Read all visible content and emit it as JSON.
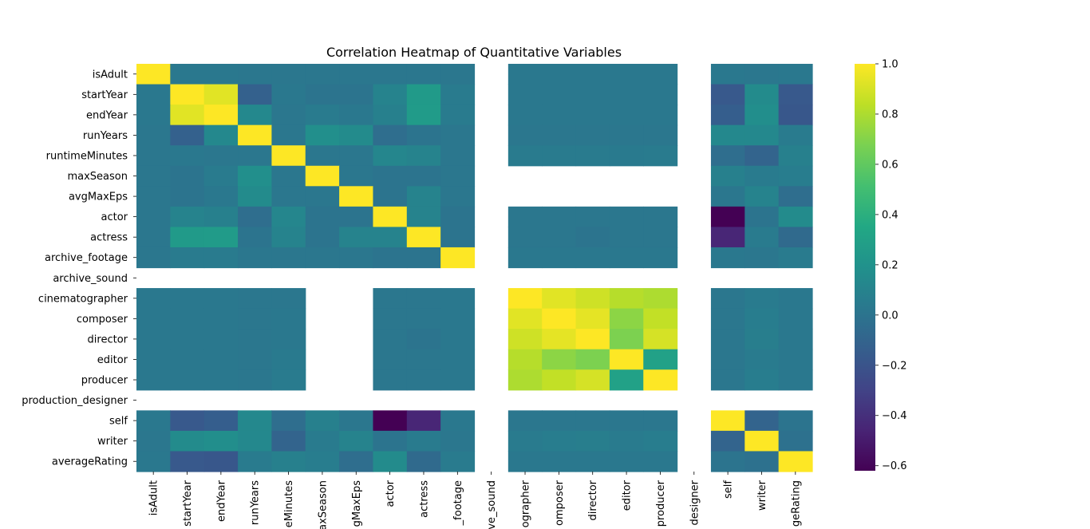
{
  "chart_data": {
    "type": "heatmap",
    "title": "Correlation Heatmap of Quantitative Variables",
    "variables": [
      "isAdult",
      "startYear",
      "endYear",
      "runYears",
      "runtimeMinutes",
      "maxSeason",
      "avgMaxEps",
      "actor",
      "actress",
      "archive_footage",
      "archive_sound",
      "cinematographer",
      "composer",
      "director",
      "editor",
      "producer",
      "production_designer",
      "self",
      "writer",
      "averageRating"
    ],
    "x_tick_labels": [
      "isAdult",
      "startYear",
      "endYear",
      "runYears",
      "eMinutes",
      "axSeason",
      "gMaxEps",
      "actor",
      "actress",
      "_footage",
      "ve_sound",
      "ographer",
      "omposer",
      "director",
      "editor",
      "producer",
      "designer",
      "self",
      "writer",
      "geRating"
    ],
    "matrix": [
      [
        1.0,
        0.03,
        0.03,
        0.02,
        0.02,
        0.02,
        0.02,
        0.02,
        0.02,
        0.02,
        null,
        0.03,
        0.03,
        0.03,
        0.03,
        0.03,
        null,
        0.03,
        0.02,
        0.03
      ],
      [
        0.03,
        1.0,
        0.93,
        -0.12,
        0.03,
        0.0,
        0.0,
        0.1,
        0.25,
        0.05,
        null,
        0.03,
        0.03,
        0.03,
        0.03,
        0.03,
        null,
        -0.17,
        0.15,
        -0.17
      ],
      [
        0.03,
        0.93,
        1.0,
        0.13,
        0.02,
        0.05,
        0.03,
        0.08,
        0.26,
        0.05,
        null,
        0.03,
        0.03,
        0.03,
        0.03,
        0.03,
        null,
        -0.14,
        0.17,
        -0.18
      ],
      [
        0.02,
        -0.12,
        0.13,
        1.0,
        0.02,
        0.18,
        0.15,
        -0.04,
        0.0,
        0.02,
        null,
        0.02,
        0.02,
        0.02,
        0.02,
        0.02,
        null,
        0.13,
        0.13,
        0.05
      ],
      [
        0.02,
        0.03,
        0.02,
        0.02,
        1.0,
        0.02,
        0.02,
        0.12,
        0.1,
        0.02,
        null,
        0.05,
        0.05,
        0.05,
        0.04,
        0.05,
        null,
        -0.04,
        -0.1,
        0.08
      ],
      [
        0.02,
        0.0,
        0.05,
        0.18,
        0.02,
        1.0,
        0.02,
        0.0,
        0.0,
        0.02,
        null,
        null,
        null,
        null,
        null,
        null,
        null,
        0.08,
        0.05,
        0.06
      ],
      [
        0.02,
        0.0,
        0.03,
        0.15,
        0.02,
        0.02,
        1.0,
        0.0,
        0.1,
        0.02,
        null,
        null,
        null,
        null,
        null,
        null,
        null,
        0.02,
        0.1,
        -0.04
      ],
      [
        0.02,
        0.1,
        0.08,
        -0.04,
        0.12,
        0.0,
        0.0,
        1.0,
        0.1,
        0.0,
        null,
        0.02,
        0.02,
        0.02,
        0.02,
        0.02,
        null,
        -0.62,
        0.0,
        0.15
      ],
      [
        0.02,
        0.25,
        0.26,
        0.0,
        0.1,
        0.0,
        0.1,
        0.1,
        1.0,
        0.0,
        null,
        0.02,
        0.02,
        0.0,
        0.02,
        0.02,
        null,
        -0.45,
        0.05,
        -0.06
      ],
      [
        0.02,
        0.05,
        0.05,
        0.02,
        0.02,
        0.02,
        0.02,
        0.0,
        0.0,
        1.0,
        null,
        0.03,
        0.03,
        0.03,
        0.03,
        0.03,
        null,
        0.03,
        0.02,
        0.05
      ],
      [
        null,
        null,
        null,
        null,
        null,
        null,
        null,
        null,
        null,
        null,
        null,
        null,
        null,
        null,
        null,
        null,
        null,
        null,
        null,
        null
      ],
      [
        0.03,
        0.03,
        0.03,
        0.02,
        0.02,
        null,
        null,
        0.02,
        0.02,
        0.03,
        null,
        1.0,
        0.93,
        0.88,
        0.82,
        0.8,
        null,
        0.02,
        0.05,
        0.03
      ],
      [
        0.03,
        0.03,
        0.03,
        0.02,
        0.03,
        null,
        null,
        0.02,
        0.02,
        0.03,
        null,
        0.93,
        1.0,
        0.94,
        0.72,
        0.85,
        null,
        0.02,
        0.06,
        0.03
      ],
      [
        0.03,
        0.03,
        0.03,
        0.02,
        0.03,
        null,
        null,
        0.02,
        0.0,
        0.03,
        null,
        0.88,
        0.94,
        1.0,
        0.68,
        0.9,
        null,
        0.02,
        0.07,
        0.03
      ],
      [
        0.03,
        0.03,
        0.03,
        0.02,
        0.04,
        null,
        null,
        0.02,
        0.02,
        0.03,
        null,
        0.82,
        0.72,
        0.68,
        1.0,
        0.3,
        null,
        0.02,
        0.05,
        0.03
      ],
      [
        0.03,
        0.03,
        0.03,
        0.02,
        0.05,
        null,
        null,
        0.02,
        0.02,
        0.03,
        null,
        0.8,
        0.85,
        0.9,
        0.3,
        1.0,
        null,
        0.02,
        0.06,
        0.03
      ],
      [
        null,
        null,
        null,
        null,
        null,
        null,
        null,
        null,
        null,
        null,
        null,
        null,
        null,
        null,
        null,
        null,
        null,
        null,
        null,
        null
      ],
      [
        0.03,
        -0.17,
        -0.14,
        0.13,
        -0.04,
        0.08,
        0.02,
        -0.62,
        -0.45,
        0.03,
        null,
        0.02,
        0.02,
        0.02,
        0.02,
        0.02,
        null,
        1.0,
        -0.1,
        0.0
      ],
      [
        0.02,
        0.15,
        0.17,
        0.13,
        -0.1,
        0.05,
        0.1,
        0.0,
        0.05,
        0.02,
        null,
        0.05,
        0.06,
        0.07,
        0.05,
        0.06,
        null,
        -0.1,
        1.0,
        -0.02
      ],
      [
        0.03,
        -0.17,
        -0.18,
        0.05,
        0.08,
        0.06,
        -0.04,
        0.15,
        -0.06,
        0.05,
        null,
        0.03,
        0.03,
        0.03,
        0.03,
        0.03,
        null,
        0.0,
        -0.02,
        1.0
      ]
    ],
    "colormap": "viridis",
    "vmin": -0.62,
    "vmax": 1.0,
    "colorbar_ticks": [
      "1.0",
      "0.8",
      "0.6",
      "0.4",
      "0.2",
      "0.0",
      "−0.2",
      "−0.4",
      "−0.6"
    ],
    "colorbar_tick_values": [
      1.0,
      0.8,
      0.6,
      0.4,
      0.2,
      0.0,
      -0.2,
      -0.4,
      -0.6
    ]
  }
}
